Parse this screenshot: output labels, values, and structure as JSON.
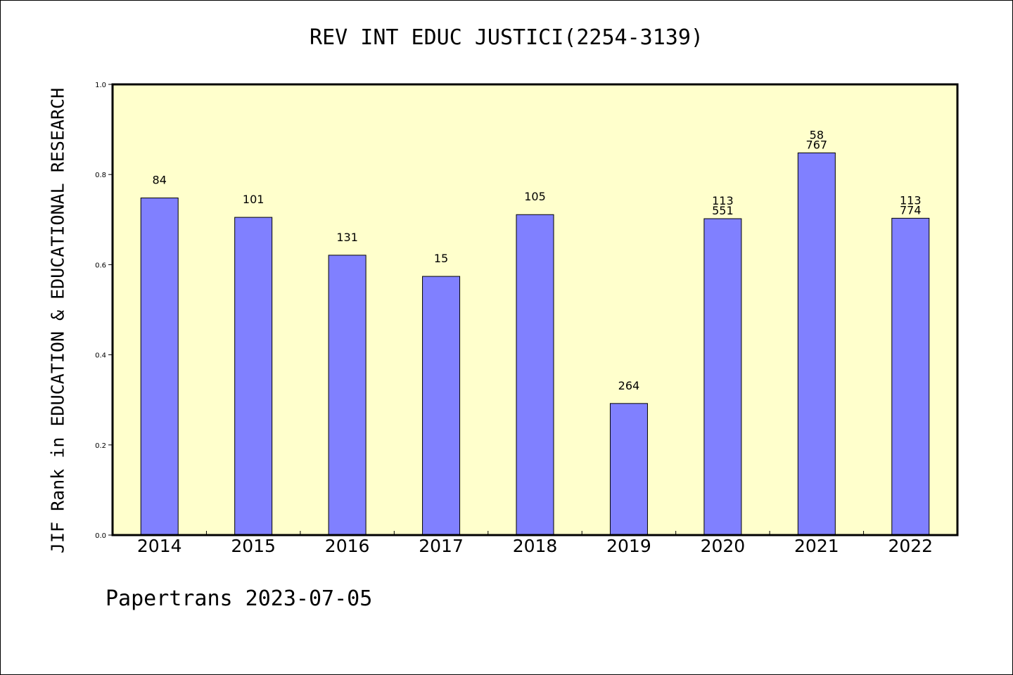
{
  "title": "REV INT EDUC JUSTICI(2254-3139)",
  "ylabel": "JIF Rank in EDUCATION & EDUCATIONAL RESEARCH",
  "footer": "Papertrans 2023-07-05",
  "colors": {
    "plot_background": "#ffffcc",
    "bar_fill": "#8080ff",
    "axis": "#000000"
  },
  "chart_data": {
    "type": "bar",
    "title": "REV INT EDUC JUSTICI(2254-3139)",
    "xlabel": "",
    "ylabel": "JIF Rank in EDUCATION & EDUCATIONAL RESEARCH",
    "ylim": [
      0,
      1.0
    ],
    "yticks": [
      "0.0",
      "0.2",
      "0.4",
      "0.6",
      "0.8",
      "1.0"
    ],
    "grid": false,
    "categories": [
      "2014",
      "2015",
      "2016",
      "2017",
      "2018",
      "2019",
      "2020",
      "2021",
      "2022"
    ],
    "values": [
      0.748,
      0.705,
      0.621,
      0.574,
      0.711,
      0.292,
      0.702,
      0.848,
      0.703
    ],
    "bar_labels": [
      [
        "84"
      ],
      [
        "101"
      ],
      [
        "131"
      ],
      [
        "15"
      ],
      [
        "105"
      ],
      [
        "264"
      ],
      [
        "113",
        "551"
      ],
      [
        "58",
        "767"
      ],
      [
        "113",
        "774"
      ]
    ]
  }
}
